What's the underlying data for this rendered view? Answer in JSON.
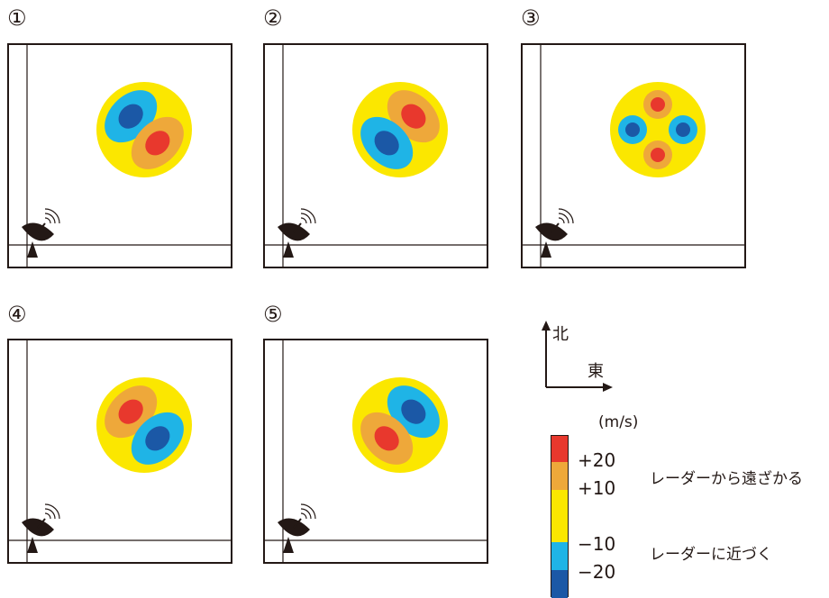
{
  "panels": [
    {
      "label": "①",
      "pattern": "nw-blue-se-red"
    },
    {
      "label": "②",
      "pattern": "ne-red-sw-blue"
    },
    {
      "label": "③",
      "pattern": "four-cell"
    },
    {
      "label": "④",
      "pattern": "nw-red-se-blue"
    },
    {
      "label": "⑤",
      "pattern": "ne-blue-sw-red"
    }
  ],
  "compass": {
    "north": "北",
    "east": "東"
  },
  "legend": {
    "unit": "(m/s)",
    "ticks": [
      "+20",
      "+10",
      "−10",
      "−20"
    ],
    "away_text": "レーダーから遠ざかる",
    "toward_text": "レーダーに近づく"
  },
  "colors": {
    "red": "#e8382d",
    "orange": "#eea83a",
    "yellow": "#fbe700",
    "light_blue": "#1fb4e6",
    "dark_blue": "#1b58a6",
    "line": "#231815"
  },
  "icons": [
    "radar-antenna-icon"
  ]
}
